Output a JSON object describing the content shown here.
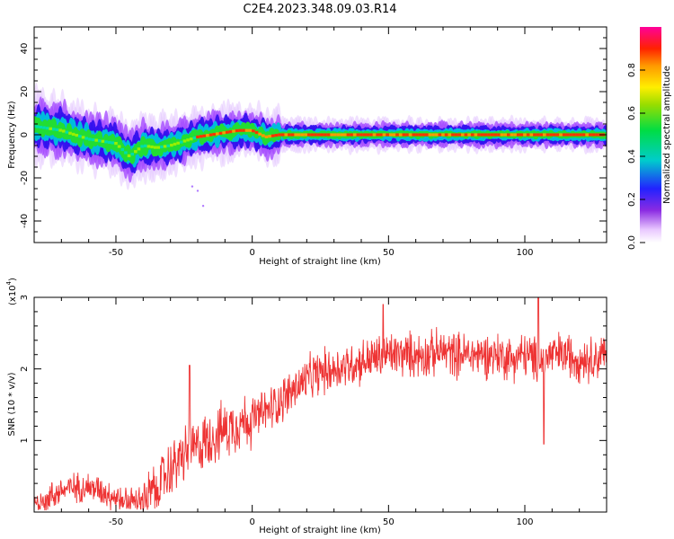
{
  "title": "C2E4.2023.348.09.03.R14",
  "colorbar": {
    "label": "Normalized spectral amplitude",
    "ticks": [
      "0.0",
      "0.2",
      "0.4",
      "0.6",
      "0.8"
    ],
    "tick_values": [
      0.0,
      0.2,
      0.4,
      0.6,
      0.8
    ],
    "range": [
      0,
      1
    ]
  },
  "chart_data": [
    {
      "type": "heatmap",
      "xlabel": "Height of straight line (km)",
      "ylabel": "Frequency (Hz)",
      "xlim": [
        -80,
        130
      ],
      "ylim": [
        -50,
        50
      ],
      "x_ticks": [
        "-50",
        "0",
        "50",
        "100"
      ],
      "x_tick_values": [
        -50,
        0,
        50,
        100
      ],
      "y_ticks": [
        "40",
        "20",
        "0",
        "-20",
        "-40"
      ],
      "y_tick_values": [
        40,
        20,
        0,
        -20,
        -40
      ],
      "ridge": {
        "x": [
          -80,
          -70,
          -60,
          -50,
          -45,
          -40,
          -35,
          -30,
          -25,
          -20,
          -15,
          -10,
          -5,
          0,
          5,
          10,
          20,
          40,
          60,
          80,
          100,
          130
        ],
        "frequency": [
          4,
          2,
          -2,
          -4,
          -10,
          -5,
          -6,
          -5,
          -3,
          -1,
          0,
          1,
          2,
          2,
          -1,
          0,
          0,
          0,
          0,
          0,
          0,
          0
        ]
      }
    },
    {
      "type": "line",
      "xlabel": "Height of straight line (km)",
      "ylabel": "SNR (10 * v/v)",
      "y_multiplier": "(x10",
      "y_multiplier_exp": "4",
      "y_multiplier_close": ")",
      "xlim": [
        -80,
        130
      ],
      "ylim": [
        0,
        3
      ],
      "x_ticks": [
        "-50",
        "0",
        "50",
        "100"
      ],
      "x_tick_values": [
        -50,
        0,
        50,
        100
      ],
      "y_ticks": [
        "1",
        "2",
        "3"
      ],
      "y_tick_values": [
        1,
        2,
        3
      ],
      "series": [
        {
          "color": "#ee3333",
          "x": [
            -80,
            -75,
            -70,
            -65,
            -60,
            -55,
            -50,
            -45,
            -40,
            -35,
            -30,
            -25,
            -20,
            -15,
            -10,
            -5,
            0,
            5,
            10,
            15,
            20,
            25,
            30,
            35,
            40,
            45,
            50,
            55,
            60,
            65,
            70,
            75,
            80,
            85,
            90,
            95,
            100,
            105,
            110,
            115,
            120,
            125,
            130
          ],
          "y": [
            0.1,
            0.2,
            0.3,
            0.35,
            0.35,
            0.3,
            0.2,
            0.15,
            0.15,
            0.35,
            0.6,
            0.8,
            0.9,
            1.05,
            1.15,
            1.25,
            1.3,
            1.4,
            1.55,
            1.7,
            1.85,
            1.95,
            2.0,
            2.05,
            2.1,
            2.15,
            2.2,
            2.2,
            2.2,
            2.2,
            2.25,
            2.2,
            2.2,
            2.2,
            2.2,
            2.15,
            2.2,
            2.1,
            2.2,
            2.2,
            2.15,
            2.15,
            2.2
          ]
        }
      ],
      "annotations": [
        {
          "x": -23,
          "y": 2.05
        },
        {
          "x": 48,
          "y": 2.9
        },
        {
          "x": 105,
          "y": 3.0
        },
        {
          "x": 107,
          "y": 0.95
        }
      ]
    }
  ]
}
